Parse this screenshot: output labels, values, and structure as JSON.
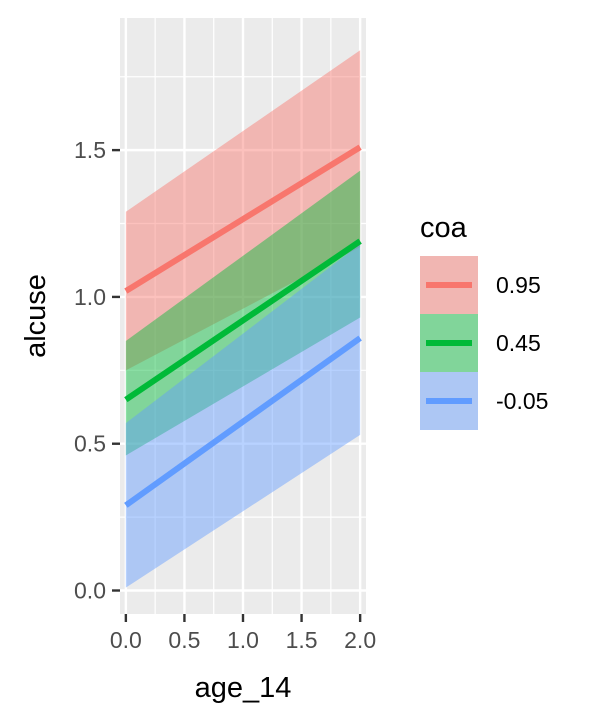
{
  "chart_data": {
    "type": "line",
    "xlabel": "age_14",
    "ylabel": "alcuse",
    "x_ticks": [
      "0.0",
      "0.5",
      "1.0",
      "1.5",
      "2.0"
    ],
    "y_ticks": [
      "0.0",
      "0.5",
      "1.0",
      "1.5"
    ],
    "xlim": [
      -0.05,
      2.05
    ],
    "ylim": [
      -0.08,
      1.95
    ],
    "grid": true,
    "legend": {
      "title": "coa",
      "position": "right"
    },
    "series": [
      {
        "name": "0.95",
        "color": "#F8766D",
        "x": [
          0,
          2
        ],
        "y": [
          1.02,
          1.51
        ],
        "lower": [
          0.75,
          1.17
        ],
        "upper": [
          1.29,
          1.84
        ]
      },
      {
        "name": "0.45",
        "color": "#00BA38",
        "x": [
          0,
          2
        ],
        "y": [
          0.65,
          1.19
        ],
        "lower": [
          0.46,
          0.93
        ],
        "upper": [
          0.85,
          1.43
        ]
      },
      {
        "name": "-0.05",
        "color": "#619CFF",
        "x": [
          0,
          2
        ],
        "y": [
          0.29,
          0.86
        ],
        "lower": [
          0.01,
          0.53
        ],
        "upper": [
          0.57,
          1.18
        ]
      }
    ]
  }
}
